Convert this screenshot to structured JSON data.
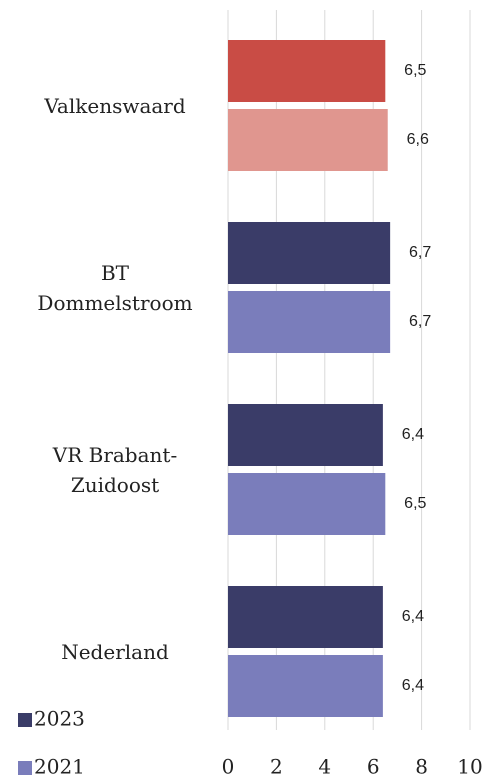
{
  "chart_data": {
    "type": "bar",
    "orientation": "horizontal",
    "categories": [
      "Valkenswaard",
      "BT Dommelstroom",
      "VR Brabant-Zuidoost",
      "Nederland"
    ],
    "series": [
      {
        "name": "2023",
        "color": "#3a3c68",
        "point_colors": [
          "#c94c45",
          "#3a3c68",
          "#3a3c68",
          "#3a3c68"
        ],
        "values": [
          6.5,
          6.7,
          6.4,
          6.4
        ],
        "value_labels": [
          "6,5",
          "6,7",
          "6,4",
          "6,4"
        ]
      },
      {
        "name": "2021",
        "color": "#7a7dbb",
        "point_colors": [
          "#e0968f",
          "#7a7dbb",
          "#7a7dbb",
          "#7a7dbb"
        ],
        "values": [
          6.6,
          6.7,
          6.5,
          6.4
        ],
        "value_labels": [
          "6,6",
          "6,7",
          "6,5",
          "6,4"
        ]
      }
    ],
    "xlim": [
      0,
      10
    ],
    "xticks": [
      0,
      2,
      4,
      6,
      8,
      10
    ],
    "grid": true,
    "legend": "bottom-left"
  }
}
